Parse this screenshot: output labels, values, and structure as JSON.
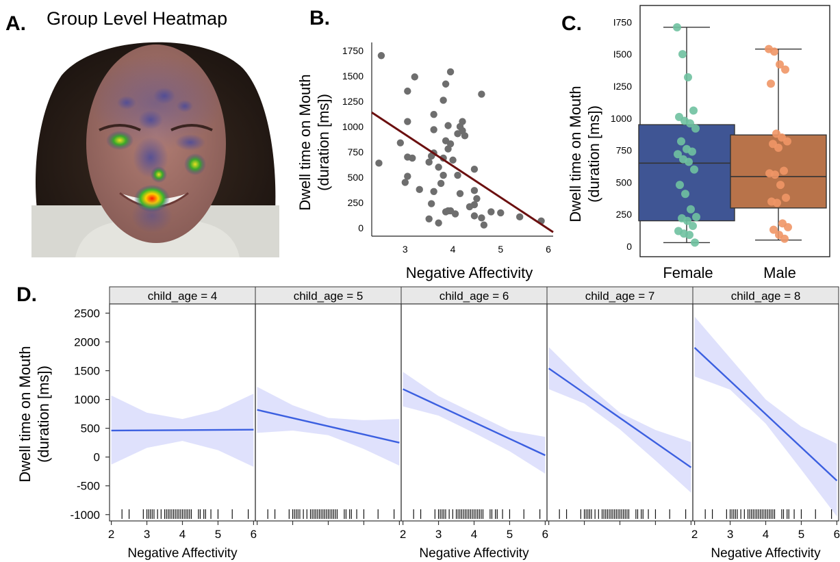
{
  "panels": {
    "A": {
      "label": "A.",
      "title": "Group Level Heatmap"
    },
    "B": {
      "label": "B."
    },
    "C": {
      "label": "C."
    },
    "D": {
      "label": "D."
    }
  },
  "colors": {
    "scatter_point": "#6e6e6e",
    "regression_line": "#6b0f0f",
    "female_box": "#3f5594",
    "male_box": "#b8734a",
    "female_point": "#6fc1a0",
    "male_point": "#f09666",
    "trend_line": "#3b5fe0",
    "ci_band": "#d9dcfb",
    "strip_bg": "#e8e8e8"
  },
  "chart_data": [
    {
      "panel": "B",
      "type": "scatter",
      "xlabel": "Negative Affectivity",
      "ylabel": [
        "Dwell time on Mouth",
        "(duration [ms])"
      ],
      "xticks": [
        3,
        4,
        5,
        6
      ],
      "yticks": [
        0,
        250,
        500,
        750,
        1000,
        1250,
        1500,
        1750
      ],
      "xlim": [
        2.3,
        6.1
      ],
      "ylim": [
        -80,
        1830
      ],
      "points": [
        [
          2.5,
          1700
        ],
        [
          3.2,
          1490
        ],
        [
          3.05,
          1350
        ],
        [
          3.95,
          1540
        ],
        [
          3.85,
          1420
        ],
        [
          4.6,
          1320
        ],
        [
          3.8,
          1260
        ],
        [
          3.05,
          1050
        ],
        [
          3.6,
          1120
        ],
        [
          4.2,
          1050
        ],
        [
          4.15,
          1000
        ],
        [
          3.6,
          970
        ],
        [
          3.9,
          1010
        ],
        [
          4.2,
          960
        ],
        [
          4.1,
          930
        ],
        [
          4.25,
          910
        ],
        [
          2.9,
          840
        ],
        [
          3.85,
          860
        ],
        [
          3.95,
          830
        ],
        [
          3.9,
          780
        ],
        [
          3.6,
          740
        ],
        [
          3.55,
          710
        ],
        [
          3.05,
          700
        ],
        [
          3.15,
          690
        ],
        [
          3.8,
          690
        ],
        [
          3.5,
          650
        ],
        [
          4.0,
          670
        ],
        [
          2.45,
          640
        ],
        [
          3.7,
          600
        ],
        [
          4.45,
          580
        ],
        [
          3.05,
          510
        ],
        [
          3.8,
          520
        ],
        [
          4.1,
          520
        ],
        [
          3.0,
          450
        ],
        [
          3.75,
          440
        ],
        [
          3.3,
          380
        ],
        [
          3.6,
          360
        ],
        [
          4.45,
          370
        ],
        [
          4.15,
          340
        ],
        [
          4.5,
          290
        ],
        [
          4.45,
          230
        ],
        [
          3.55,
          240
        ],
        [
          4.35,
          210
        ],
        [
          3.9,
          170
        ],
        [
          4.8,
          160
        ],
        [
          5.0,
          150
        ],
        [
          5.4,
          110
        ],
        [
          3.5,
          90
        ],
        [
          3.95,
          170
        ],
        [
          3.85,
          160
        ],
        [
          4.05,
          140
        ],
        [
          4.45,
          120
        ],
        [
          4.6,
          100
        ],
        [
          3.7,
          50
        ],
        [
          4.65,
          30
        ],
        [
          5.85,
          70
        ]
      ],
      "regression": {
        "x": [
          2.3,
          6.1
        ],
        "y": [
          1140,
          -40
        ]
      }
    },
    {
      "panel": "C",
      "type": "box",
      "categories": [
        "Female",
        "Male"
      ],
      "ylabel": [
        "Dwell time on Mouth",
        "(duration [ms])"
      ],
      "yticks": [
        0,
        250,
        500,
        750,
        1000,
        1250,
        1500,
        1750
      ],
      "ytick_labels": [
        "0",
        "250",
        "500",
        "750",
        "1000",
        "I250",
        "I500",
        "I750"
      ],
      "ylim": [
        -80,
        1880
      ],
      "boxes": [
        {
          "name": "Female",
          "whisker_low": 30,
          "q1": 200,
          "median": 650,
          "q3": 950,
          "whisker_high": 1710,
          "points": [
            1710,
            1500,
            1320,
            1060,
            1010,
            980,
            960,
            920,
            820,
            760,
            740,
            720,
            680,
            660,
            600,
            480,
            410,
            290,
            230,
            220,
            200,
            160,
            120,
            100,
            90,
            30
          ]
        },
        {
          "name": "Male",
          "whisker_low": 50,
          "q1": 300,
          "median": 545,
          "q3": 870,
          "whisker_high": 1540,
          "points": [
            1540,
            1520,
            1420,
            1380,
            1270,
            880,
            850,
            820,
            800,
            770,
            590,
            570,
            560,
            480,
            380,
            350,
            340,
            180,
            150,
            130,
            90,
            60
          ]
        }
      ]
    },
    {
      "panel": "D",
      "type": "line",
      "xlabel": "Negative Affectivity",
      "ylabel": [
        "Dwell time on Mouth",
        "(duration [ms])"
      ],
      "xticks": [
        2,
        3,
        4,
        5,
        6
      ],
      "yticks": [
        -1000,
        -500,
        0,
        500,
        1000,
        1500,
        2000,
        2500
      ],
      "xlim": [
        1.95,
        6.05
      ],
      "ylim": [
        -1110,
        2660
      ],
      "rug_x": [
        2.3,
        2.5,
        2.9,
        3.0,
        3.05,
        3.1,
        3.15,
        3.2,
        3.3,
        3.4,
        3.5,
        3.55,
        3.6,
        3.65,
        3.7,
        3.75,
        3.8,
        3.85,
        3.9,
        3.95,
        4.0,
        4.05,
        4.1,
        4.15,
        4.2,
        4.25,
        4.45,
        4.5,
        4.6,
        4.65,
        4.8,
        5.0,
        5.4,
        5.85
      ],
      "facets": [
        {
          "label": "child_age = 4",
          "x": [
            2,
            6
          ],
          "y": [
            460,
            475
          ],
          "ci_x": [
            2,
            3,
            4,
            5,
            6
          ],
          "ci_low": [
            -130,
            160,
            280,
            120,
            -170
          ],
          "ci_high": [
            1070,
            770,
            660,
            810,
            1100
          ]
        },
        {
          "label": "child_age = 5",
          "x": [
            2,
            6
          ],
          "y": [
            820,
            250
          ],
          "ci_x": [
            2,
            3,
            4,
            5,
            6
          ],
          "ci_low": [
            420,
            460,
            380,
            140,
            -150
          ],
          "ci_high": [
            1220,
            900,
            680,
            640,
            660
          ]
        },
        {
          "label": "child_age = 6",
          "x": [
            2,
            6
          ],
          "y": [
            1180,
            30
          ],
          "ci_x": [
            2,
            3,
            4,
            5,
            6
          ],
          "ci_low": [
            880,
            720,
            420,
            100,
            -290
          ],
          "ci_high": [
            1480,
            1060,
            760,
            460,
            350
          ]
        },
        {
          "label": "child_age = 7",
          "x": [
            2,
            6
          ],
          "y": [
            1540,
            -180
          ],
          "ci_x": [
            2,
            3,
            4,
            5,
            6
          ],
          "ci_low": [
            1180,
            930,
            480,
            -60,
            -620
          ],
          "ci_high": [
            1910,
            1300,
            770,
            470,
            260
          ]
        },
        {
          "label": "child_age = 8",
          "x": [
            2,
            6
          ],
          "y": [
            1900,
            -410
          ],
          "ci_x": [
            2,
            3,
            4,
            5,
            6
          ],
          "ci_low": [
            1400,
            1170,
            580,
            -220,
            -1030
          ],
          "ci_high": [
            2440,
            1720,
            1000,
            530,
            230
          ]
        }
      ]
    }
  ]
}
